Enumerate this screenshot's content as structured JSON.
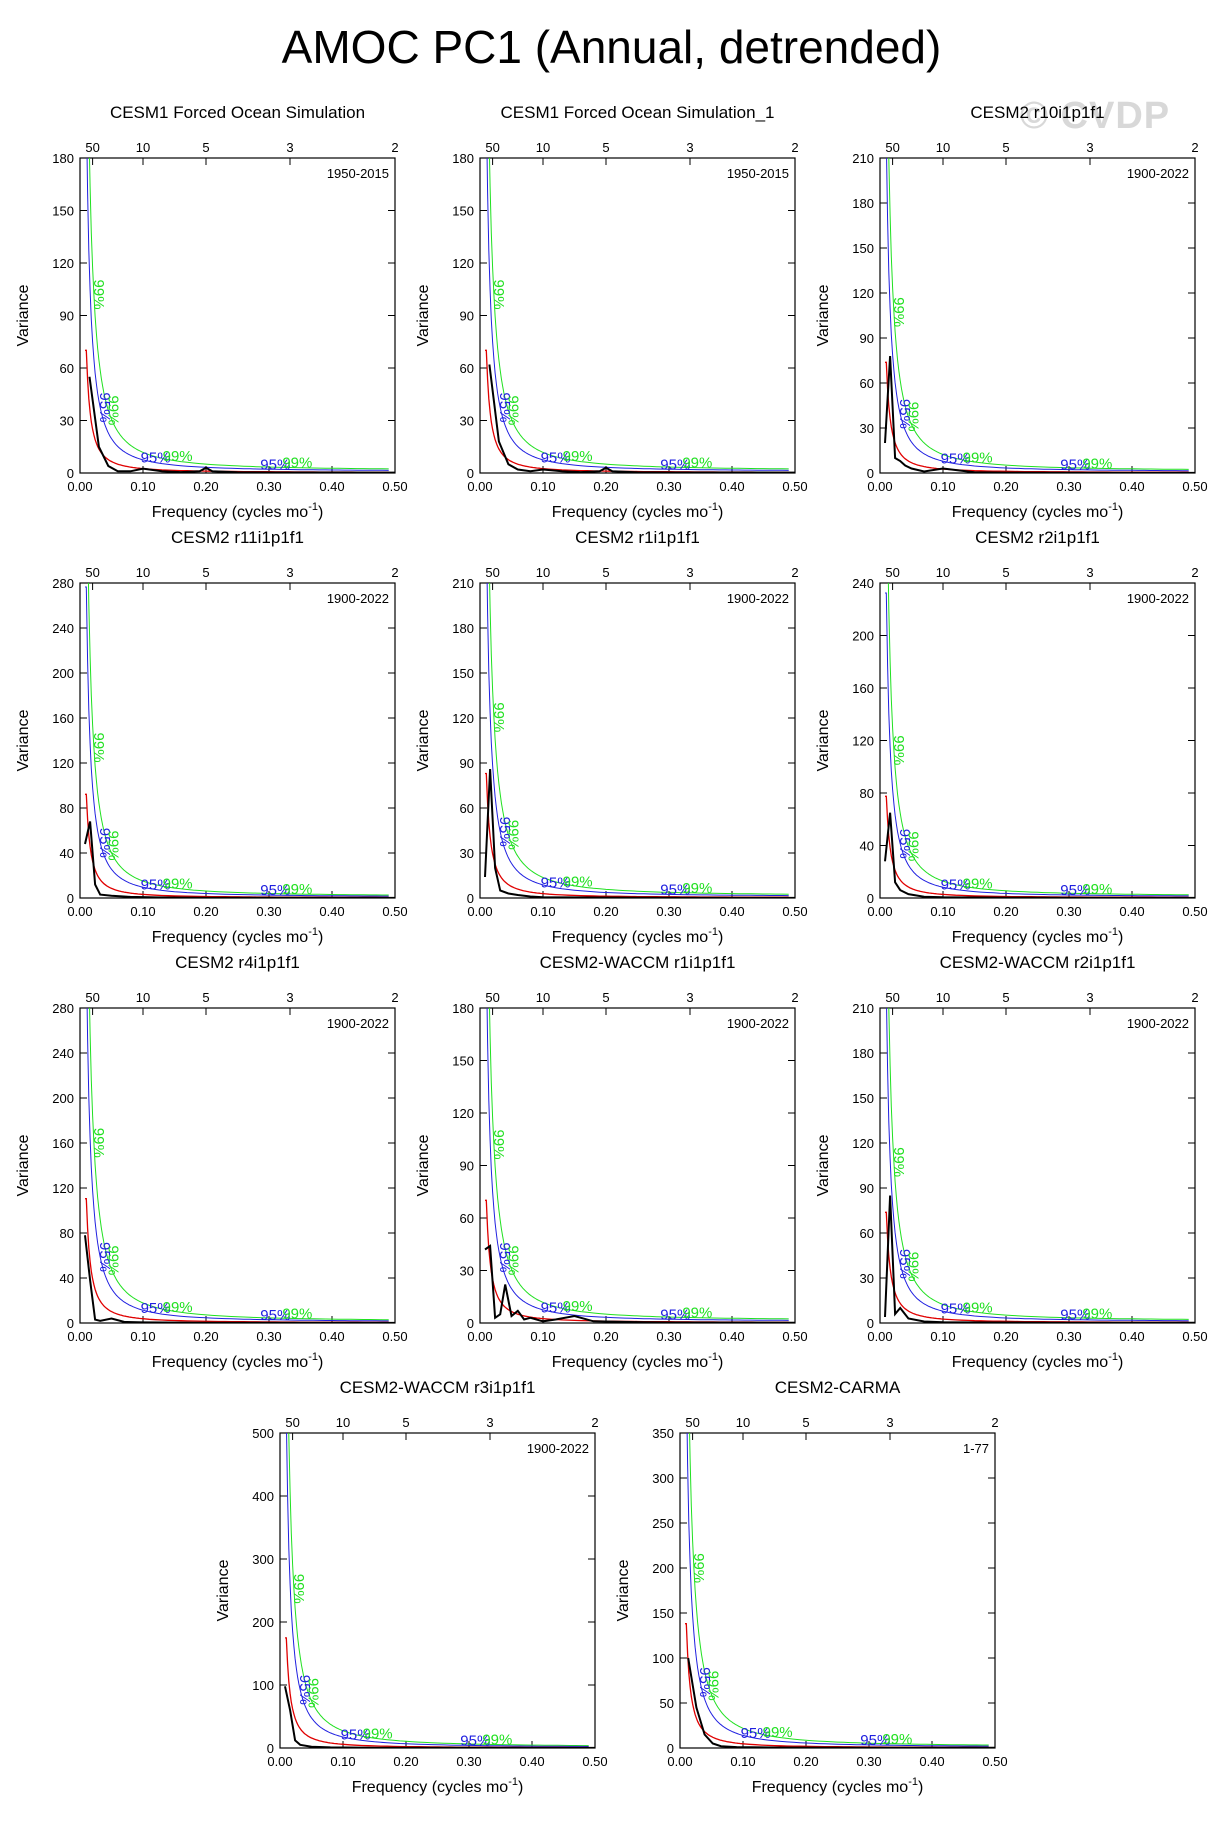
{
  "title": "AMOC PC1 (Annual, detrended)",
  "watermark": "© CVDP",
  "colors": {
    "spectrum": "#000000",
    "red_noise": "#e00000",
    "conf95": "#2020e0",
    "conf99": "#20e020"
  },
  "chart_data": [
    {
      "type": "line",
      "title": "CESM1 Forced Ocean Simulation",
      "period": "1950-2015",
      "ymax": 180,
      "yticks": [
        0,
        30,
        60,
        90,
        120,
        150,
        180
      ],
      "xlabel": "Frequency (cycles mo",
      "xlabel_sup": "-1",
      "ylabel": "Variance",
      "xticks": [
        "0.00",
        "0.10",
        "0.20",
        "0.30",
        "0.40",
        "0.50"
      ],
      "top_ticks": [
        "50",
        "10",
        "5",
        "3",
        "2"
      ],
      "label95": "95%",
      "label99": "99%",
      "red_amp": 38,
      "spectrum": [
        [
          0.015,
          55
        ],
        [
          0.03,
          15
        ],
        [
          0.045,
          4
        ],
        [
          0.06,
          1
        ],
        [
          0.08,
          1
        ],
        [
          0.1,
          2.5
        ],
        [
          0.13,
          1
        ],
        [
          0.16,
          0.5
        ],
        [
          0.19,
          1
        ],
        [
          0.2,
          3
        ],
        [
          0.21,
          1
        ],
        [
          0.25,
          0.4
        ],
        [
          0.3,
          0.3
        ],
        [
          0.4,
          0.3
        ],
        [
          0.5,
          0.2
        ]
      ]
    },
    {
      "type": "line",
      "title": "CESM1 Forced Ocean Simulation_1",
      "period": "1950-2015",
      "ymax": 180,
      "yticks": [
        0,
        30,
        60,
        90,
        120,
        150,
        180
      ],
      "xlabel": "Frequency (cycles mo",
      "xlabel_sup": "-1",
      "ylabel": "Variance",
      "xticks": [
        "0.00",
        "0.10",
        "0.20",
        "0.30",
        "0.40",
        "0.50"
      ],
      "top_ticks": [
        "50",
        "10",
        "5",
        "3",
        "2"
      ],
      "label95": "95%",
      "label99": "99%",
      "red_amp": 38,
      "spectrum": [
        [
          0.015,
          62
        ],
        [
          0.03,
          18
        ],
        [
          0.045,
          5
        ],
        [
          0.06,
          2
        ],
        [
          0.08,
          1
        ],
        [
          0.1,
          2
        ],
        [
          0.13,
          1
        ],
        [
          0.16,
          0.5
        ],
        [
          0.19,
          1
        ],
        [
          0.2,
          3
        ],
        [
          0.21,
          1
        ],
        [
          0.25,
          0.4
        ],
        [
          0.3,
          0.3
        ],
        [
          0.4,
          0.3
        ],
        [
          0.5,
          0.2
        ]
      ]
    },
    {
      "type": "line",
      "title": "CESM2 r10i1p1f1",
      "period": "1900-2022",
      "ymax": 210,
      "yticks": [
        0,
        30,
        60,
        90,
        120,
        150,
        180,
        210
      ],
      "xlabel": "Frequency (cycles mo",
      "xlabel_sup": "-1",
      "ylabel": "Variance",
      "xticks": [
        "0.00",
        "0.10",
        "0.20",
        "0.30",
        "0.40",
        "0.50"
      ],
      "top_ticks": [
        "50",
        "10",
        "5",
        "3",
        "2"
      ],
      "label95": "95%",
      "label99": "99%",
      "red_amp": 40,
      "spectrum": [
        [
          0.008,
          20
        ],
        [
          0.016,
          78
        ],
        [
          0.024,
          10
        ],
        [
          0.032,
          8
        ],
        [
          0.04,
          5
        ],
        [
          0.05,
          3
        ],
        [
          0.07,
          1
        ],
        [
          0.1,
          3
        ],
        [
          0.15,
          0.5
        ],
        [
          0.2,
          0.3
        ],
        [
          0.3,
          0.2
        ],
        [
          0.5,
          0.1
        ]
      ]
    },
    {
      "type": "line",
      "title": "CESM2 r11i1p1f1",
      "period": "1900-2022",
      "ymax": 280,
      "yticks": [
        0,
        40,
        80,
        120,
        160,
        200,
        240,
        280
      ],
      "xlabel": "Frequency (cycles mo",
      "xlabel_sup": "-1",
      "ylabel": "Variance",
      "xticks": [
        "0.00",
        "0.10",
        "0.20",
        "0.30",
        "0.40",
        "0.50"
      ],
      "top_ticks": [
        "50",
        "10",
        "5",
        "3",
        "2"
      ],
      "label95": "95%",
      "label99": "99%",
      "red_amp": 50,
      "spectrum": [
        [
          0.008,
          48
        ],
        [
          0.016,
          68
        ],
        [
          0.024,
          12
        ],
        [
          0.032,
          3
        ],
        [
          0.05,
          2
        ],
        [
          0.08,
          1
        ],
        [
          0.12,
          0.5
        ],
        [
          0.2,
          0.3
        ],
        [
          0.3,
          0.2
        ],
        [
          0.5,
          0.1
        ]
      ]
    },
    {
      "type": "line",
      "title": "CESM2 r1i1p1f1",
      "period": "1900-2022",
      "ymax": 210,
      "yticks": [
        0,
        30,
        60,
        90,
        120,
        150,
        180,
        210
      ],
      "xlabel": "Frequency (cycles mo",
      "xlabel_sup": "-1",
      "ylabel": "Variance",
      "xticks": [
        "0.00",
        "0.10",
        "0.20",
        "0.30",
        "0.40",
        "0.50"
      ],
      "top_ticks": [
        "50",
        "10",
        "5",
        "3",
        "2"
      ],
      "label95": "95%",
      "label99": "99%",
      "red_amp": 45,
      "spectrum": [
        [
          0.008,
          14
        ],
        [
          0.016,
          86
        ],
        [
          0.024,
          20
        ],
        [
          0.032,
          5
        ],
        [
          0.045,
          3
        ],
        [
          0.06,
          2
        ],
        [
          0.08,
          1
        ],
        [
          0.1,
          0.5
        ],
        [
          0.2,
          0.3
        ],
        [
          0.3,
          0.2
        ],
        [
          0.5,
          0.1
        ]
      ]
    },
    {
      "type": "line",
      "title": "CESM2 r2i1p1f1",
      "period": "1900-2022",
      "ymax": 240,
      "yticks": [
        0,
        40,
        80,
        120,
        160,
        200,
        240
      ],
      "xlabel": "Frequency (cycles mo",
      "xlabel_sup": "-1",
      "ylabel": "Variance",
      "xticks": [
        "0.00",
        "0.10",
        "0.20",
        "0.30",
        "0.40",
        "0.50"
      ],
      "top_ticks": [
        "50",
        "10",
        "5",
        "3",
        "2"
      ],
      "label95": "95%",
      "label99": "99%",
      "red_amp": 42,
      "spectrum": [
        [
          0.008,
          28
        ],
        [
          0.016,
          65
        ],
        [
          0.024,
          12
        ],
        [
          0.032,
          6
        ],
        [
          0.045,
          3
        ],
        [
          0.07,
          1
        ],
        [
          0.1,
          0.5
        ],
        [
          0.2,
          0.3
        ],
        [
          0.3,
          0.2
        ],
        [
          0.5,
          0.1
        ]
      ]
    },
    {
      "type": "line",
      "title": "CESM2 r4i1p1f1",
      "period": "1900-2022",
      "ymax": 280,
      "yticks": [
        0,
        40,
        80,
        120,
        160,
        200,
        240,
        280
      ],
      "xlabel": "Frequency (cycles mo",
      "xlabel_sup": "-1",
      "ylabel": "Variance",
      "xticks": [
        "0.00",
        "0.10",
        "0.20",
        "0.30",
        "0.40",
        "0.50"
      ],
      "top_ticks": [
        "50",
        "10",
        "5",
        "3",
        "2"
      ],
      "label95": "95%",
      "label99": "99%",
      "red_amp": 60,
      "spectrum": [
        [
          0.008,
          78
        ],
        [
          0.016,
          38
        ],
        [
          0.024,
          3
        ],
        [
          0.032,
          2
        ],
        [
          0.05,
          4
        ],
        [
          0.07,
          1
        ],
        [
          0.1,
          0.5
        ],
        [
          0.2,
          0.3
        ],
        [
          0.3,
          0.2
        ],
        [
          0.5,
          0.1
        ]
      ]
    },
    {
      "type": "line",
      "title": "CESM2-WACCM r1i1p1f1",
      "period": "1900-2022",
      "ymax": 180,
      "yticks": [
        0,
        30,
        60,
        90,
        120,
        150,
        180
      ],
      "xlabel": "Frequency (cycles mo",
      "xlabel_sup": "-1",
      "ylabel": "Variance",
      "xticks": [
        "0.00",
        "0.10",
        "0.20",
        "0.30",
        "0.40",
        "0.50"
      ],
      "top_ticks": [
        "50",
        "10",
        "5",
        "3",
        "2"
      ],
      "label95": "95%",
      "label99": "99%",
      "red_amp": 38,
      "spectrum": [
        [
          0.008,
          42
        ],
        [
          0.016,
          44
        ],
        [
          0.024,
          3
        ],
        [
          0.032,
          5
        ],
        [
          0.04,
          22
        ],
        [
          0.05,
          4
        ],
        [
          0.06,
          7
        ],
        [
          0.07,
          2
        ],
        [
          0.08,
          3
        ],
        [
          0.1,
          1
        ],
        [
          0.12,
          2
        ],
        [
          0.15,
          4
        ],
        [
          0.18,
          1
        ],
        [
          0.25,
          0.5
        ],
        [
          0.3,
          0.3
        ],
        [
          0.5,
          0.2
        ]
      ]
    },
    {
      "type": "line",
      "title": "CESM2-WACCM r2i1p1f1",
      "period": "1900-2022",
      "ymax": 210,
      "yticks": [
        0,
        30,
        60,
        90,
        120,
        150,
        180,
        210
      ],
      "xlabel": "Frequency (cycles mo",
      "xlabel_sup": "-1",
      "ylabel": "Variance",
      "xticks": [
        "0.00",
        "0.10",
        "0.20",
        "0.30",
        "0.40",
        "0.50"
      ],
      "top_ticks": [
        "50",
        "10",
        "5",
        "3",
        "2"
      ],
      "label95": "95%",
      "label99": "99%",
      "red_amp": 40,
      "spectrum": [
        [
          0.008,
          4
        ],
        [
          0.016,
          85
        ],
        [
          0.024,
          6
        ],
        [
          0.032,
          10
        ],
        [
          0.045,
          3
        ],
        [
          0.07,
          1
        ],
        [
          0.1,
          0.5
        ],
        [
          0.2,
          0.3
        ],
        [
          0.3,
          0.2
        ],
        [
          0.5,
          0.1
        ]
      ]
    },
    {
      "type": "line",
      "title": "CESM2-WACCM r3i1p1f1",
      "period": "1900-2022",
      "ymax": 500,
      "yticks": [
        0,
        100,
        200,
        300,
        400,
        500
      ],
      "xlabel": "Frequency (cycles mo",
      "xlabel_sup": "-1",
      "ylabel": "Variance",
      "xticks": [
        "0.00",
        "0.10",
        "0.20",
        "0.30",
        "0.40",
        "0.50"
      ],
      "top_ticks": [
        "50",
        "10",
        "5",
        "3",
        "2"
      ],
      "label95": "95%",
      "label99": "99%",
      "red_amp": 95,
      "spectrum": [
        [
          0.008,
          98
        ],
        [
          0.016,
          60
        ],
        [
          0.024,
          12
        ],
        [
          0.032,
          5
        ],
        [
          0.05,
          2
        ],
        [
          0.08,
          1
        ],
        [
          0.15,
          0.5
        ],
        [
          0.3,
          0.3
        ],
        [
          0.5,
          0.2
        ]
      ]
    },
    {
      "type": "line",
      "title": "CESM2-CARMA",
      "period": "1-77",
      "ymax": 350,
      "yticks": [
        0,
        50,
        100,
        150,
        200,
        250,
        300,
        350
      ],
      "xlabel": "Frequency (cycles mo",
      "xlabel_sup": "-1",
      "ylabel": "Variance",
      "xticks": [
        "0.00",
        "0.10",
        "0.20",
        "0.30",
        "0.40",
        "0.50"
      ],
      "top_ticks": [
        "50",
        "10",
        "5",
        "3",
        "2"
      ],
      "label95": "95%",
      "label99": "99%",
      "red_amp": 75,
      "spectrum": [
        [
          0.013,
          100
        ],
        [
          0.026,
          45
        ],
        [
          0.039,
          15
        ],
        [
          0.052,
          5
        ],
        [
          0.065,
          2
        ],
        [
          0.09,
          1
        ],
        [
          0.15,
          0.5
        ],
        [
          0.3,
          0.3
        ],
        [
          0.5,
          0.2
        ]
      ]
    }
  ]
}
